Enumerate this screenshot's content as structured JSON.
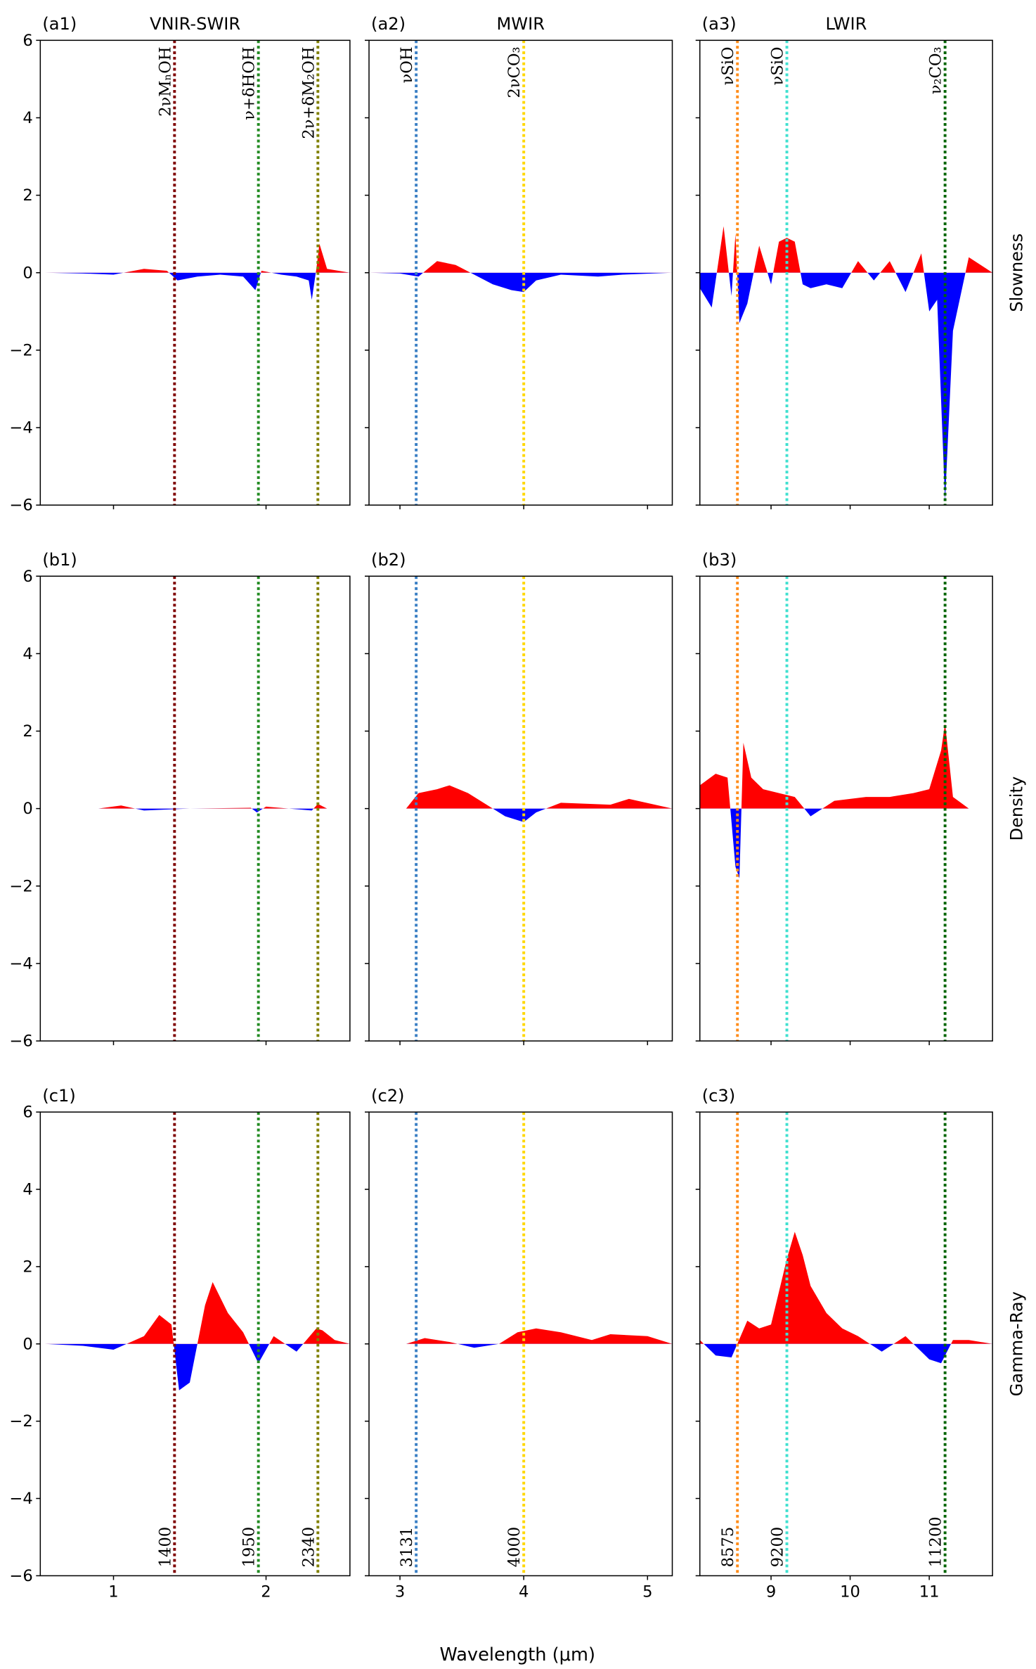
{
  "figure": {
    "xlabel": "Wavelength (μm)",
    "colors": {
      "positive": "#ff0000",
      "negative": "#0000ff",
      "axis": "#000000"
    }
  },
  "columns": [
    {
      "title": "VNIR-SWIR",
      "xlim": [
        0.52,
        2.55
      ],
      "xticks": [
        1,
        2
      ],
      "lines": [
        {
          "x": 1.4,
          "color": "#7f0000",
          "label": "2νMₙOH",
          "wavenumber": "1400"
        },
        {
          "x": 1.95,
          "color": "#228b22",
          "label": "ν+δHOH",
          "wavenumber": "1950"
        },
        {
          "x": 2.34,
          "color": "#808000",
          "label": "2ν+δM₂OH",
          "wavenumber": "2340"
        }
      ]
    },
    {
      "title": "MWIR",
      "xlim": [
        2.75,
        5.2
      ],
      "xticks": [
        3,
        4,
        5
      ],
      "lines": [
        {
          "x": 3.131,
          "color": "#3a7fc4",
          "label": "νOH",
          "wavenumber": "3131"
        },
        {
          "x": 4.0,
          "color": "#ffd700",
          "label": "2νCO₃",
          "wavenumber": "4000"
        }
      ]
    },
    {
      "title": "LWIR",
      "xlim": [
        8.1,
        11.8
      ],
      "xticks": [
        9,
        10,
        11
      ],
      "lines": [
        {
          "x": 8.575,
          "color": "#ff8c1a",
          "label": "νSiO",
          "wavenumber": "8575"
        },
        {
          "x": 9.2,
          "color": "#40e0d0",
          "label": "νSiO",
          "wavenumber": "9200"
        },
        {
          "x": 11.2,
          "color": "#006400",
          "label": "ν₂CO₃",
          "wavenumber": "11200"
        }
      ]
    }
  ],
  "rows": [
    {
      "ylabel": "Slowness",
      "panel_labels": [
        "(a1)",
        "(a2)",
        "(a3)"
      ]
    },
    {
      "ylabel": "Density",
      "panel_labels": [
        "(b1)",
        "(b2)",
        "(b3)"
      ]
    },
    {
      "ylabel": "Gamma-Ray",
      "panel_labels": [
        "(c1)",
        "(c2)",
        "(c3)"
      ]
    }
  ],
  "yticks": [
    -6,
    -4,
    -2,
    0,
    2,
    4,
    6
  ],
  "chart_data": [
    {
      "panel": "a1",
      "type": "area",
      "ylim": [
        -6,
        6
      ],
      "x": [
        0.55,
        0.8,
        1.0,
        1.2,
        1.35,
        1.42,
        1.55,
        1.7,
        1.85,
        1.93,
        1.97,
        2.1,
        2.2,
        2.28,
        2.3,
        2.33,
        2.35,
        2.4,
        2.55
      ],
      "y": [
        0.0,
        -0.02,
        -0.05,
        0.1,
        0.05,
        -0.2,
        -0.1,
        -0.05,
        -0.1,
        -0.45,
        0.05,
        -0.05,
        -0.1,
        -0.2,
        -0.7,
        0.1,
        0.75,
        0.1,
        0.0
      ]
    },
    {
      "panel": "a2",
      "type": "area",
      "ylim": [
        -6,
        6
      ],
      "x": [
        2.75,
        3.0,
        3.15,
        3.3,
        3.45,
        3.6,
        3.75,
        3.9,
        4.0,
        4.1,
        4.3,
        4.6,
        4.8,
        5.2
      ],
      "y": [
        0.0,
        -0.02,
        -0.1,
        0.3,
        0.2,
        -0.05,
        -0.3,
        -0.45,
        -0.5,
        -0.2,
        -0.05,
        -0.1,
        -0.05,
        0.0
      ],
      "peaks": [
        {
          "x": 3.35,
          "y": 0.3
        },
        {
          "x": 3.95,
          "y": -0.5
        }
      ]
    },
    {
      "panel": "a3",
      "type": "area",
      "ylim": [
        -6,
        6
      ],
      "x": [
        8.1,
        8.25,
        8.4,
        8.5,
        8.55,
        8.6,
        8.7,
        8.85,
        9.0,
        9.1,
        9.2,
        9.3,
        9.4,
        9.5,
        9.7,
        9.9,
        10.1,
        10.3,
        10.5,
        10.7,
        10.9,
        11.0,
        11.1,
        11.2,
        11.3,
        11.5,
        11.8
      ],
      "y": [
        -0.4,
        -0.9,
        1.2,
        -0.6,
        1.0,
        -1.3,
        -0.8,
        0.7,
        -0.3,
        0.8,
        0.9,
        0.8,
        -0.3,
        -0.4,
        -0.3,
        -0.4,
        0.3,
        -0.2,
        0.3,
        -0.5,
        0.5,
        -1.0,
        -0.7,
        -5.9,
        -1.5,
        0.4,
        0.0
      ]
    },
    {
      "panel": "b1",
      "type": "area",
      "ylim": [
        -6,
        6
      ],
      "x": [
        0.55,
        0.9,
        1.05,
        1.2,
        1.5,
        1.9,
        1.94,
        2.0,
        2.3,
        2.34,
        2.4,
        2.55
      ],
      "y": [
        0.0,
        0.0,
        0.08,
        -0.05,
        0.0,
        0.02,
        -0.1,
        0.05,
        -0.05,
        0.12,
        0.0,
        0.0
      ]
    },
    {
      "panel": "b2",
      "type": "area",
      "ylim": [
        -6,
        6
      ],
      "x": [
        2.75,
        3.05,
        3.15,
        3.3,
        3.4,
        3.55,
        3.7,
        3.85,
        4.0,
        4.1,
        4.3,
        4.7,
        4.85,
        5.2
      ],
      "y": [
        0.0,
        0.0,
        0.4,
        0.5,
        0.6,
        0.4,
        0.1,
        -0.2,
        -0.35,
        -0.1,
        0.15,
        0.1,
        0.25,
        0.0
      ]
    },
    {
      "panel": "b3",
      "type": "area",
      "ylim": [
        -6,
        6
      ],
      "x": [
        8.1,
        8.3,
        8.45,
        8.55,
        8.6,
        8.65,
        8.75,
        8.9,
        9.1,
        9.3,
        9.5,
        9.8,
        10.2,
        10.5,
        10.8,
        11.0,
        11.15,
        11.2,
        11.3,
        11.5,
        11.8
      ],
      "y": [
        0.6,
        0.9,
        0.8,
        -1.5,
        -1.8,
        1.7,
        0.8,
        0.5,
        0.4,
        0.3,
        -0.2,
        0.2,
        0.3,
        0.3,
        0.4,
        0.5,
        1.5,
        2.2,
        0.3,
        0.0,
        0.0
      ]
    },
    {
      "panel": "c1",
      "type": "area",
      "ylim": [
        -6,
        6
      ],
      "x": [
        0.55,
        0.8,
        1.0,
        1.2,
        1.3,
        1.38,
        1.43,
        1.5,
        1.6,
        1.65,
        1.75,
        1.85,
        1.95,
        2.05,
        2.2,
        2.33,
        2.37,
        2.45,
        2.55
      ],
      "y": [
        0.0,
        -0.05,
        -0.15,
        0.2,
        0.75,
        0.5,
        -1.2,
        -1.0,
        1.0,
        1.6,
        0.8,
        0.3,
        -0.5,
        0.2,
        -0.2,
        0.4,
        0.35,
        0.1,
        0.0
      ]
    },
    {
      "panel": "c2",
      "type": "area",
      "ylim": [
        -6,
        6
      ],
      "x": [
        2.75,
        3.05,
        3.2,
        3.4,
        3.6,
        3.8,
        3.95,
        4.1,
        4.3,
        4.55,
        4.7,
        5.0,
        5.2
      ],
      "y": [
        0.0,
        0.0,
        0.15,
        0.05,
        -0.1,
        0.0,
        0.3,
        0.4,
        0.3,
        0.1,
        0.25,
        0.2,
        0.0
      ]
    },
    {
      "panel": "c3",
      "type": "area",
      "ylim": [
        -6,
        6
      ],
      "x": [
        8.1,
        8.3,
        8.5,
        8.7,
        8.85,
        9.0,
        9.2,
        9.3,
        9.4,
        9.5,
        9.7,
        9.9,
        10.1,
        10.4,
        10.7,
        11.0,
        11.15,
        11.3,
        11.5,
        11.8
      ],
      "y": [
        0.1,
        -0.3,
        -0.35,
        0.6,
        0.4,
        0.5,
        2.2,
        2.9,
        2.3,
        1.5,
        0.8,
        0.4,
        0.2,
        -0.2,
        0.2,
        -0.4,
        -0.5,
        0.1,
        0.1,
        0.0
      ]
    }
  ]
}
